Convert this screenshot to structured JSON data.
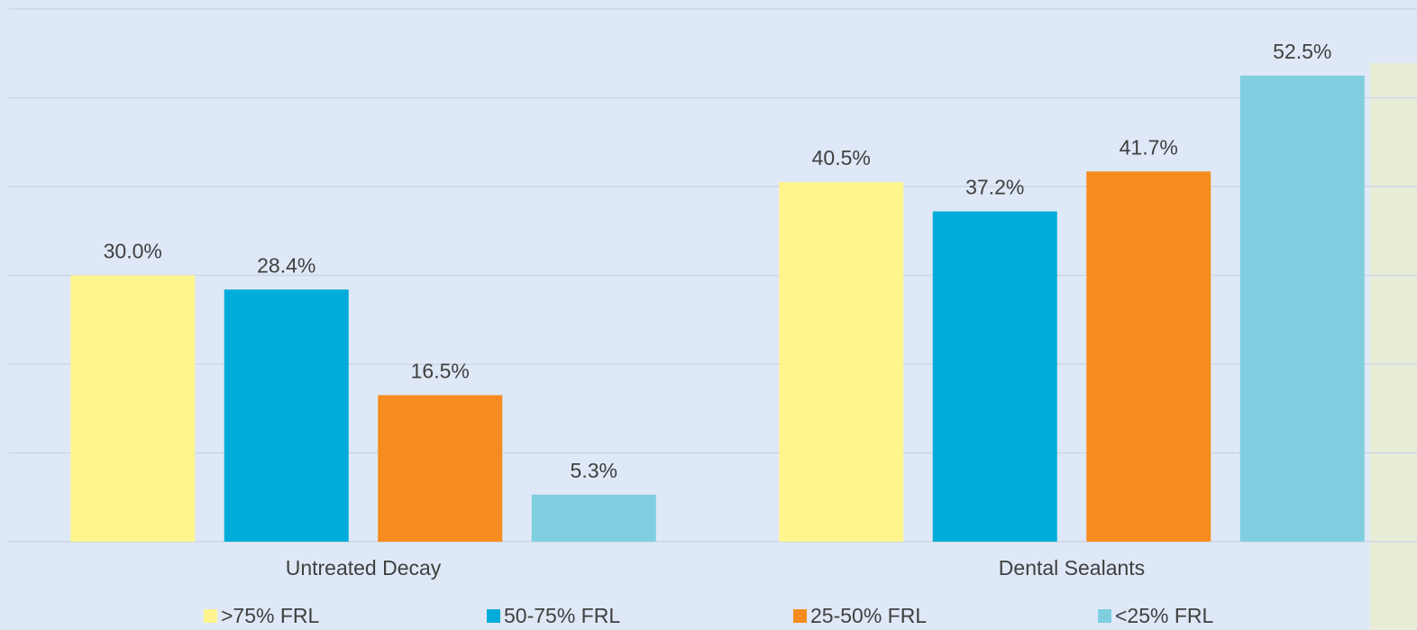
{
  "chart_data": {
    "type": "bar",
    "categories": [
      "Untreated Decay",
      "Dental Sealants"
    ],
    "series": [
      {
        "name": ">75% FRL",
        "color": "#fff58f",
        "values": [
          30.0,
          40.5
        ],
        "value_labels": [
          "30.0%",
          "40.5%"
        ]
      },
      {
        "name": "50-75% FRL",
        "color": "#00acd9",
        "values": [
          28.4,
          37.2
        ],
        "value_labels": [
          "28.4%",
          "37.2%"
        ]
      },
      {
        "name": "25-50% FRL",
        "color": "#f68c1f",
        "values": [
          16.5,
          41.7
        ],
        "value_labels": [
          "16.5%",
          "41.7%"
        ]
      },
      {
        "name": "<25% FRL",
        "color": "#7fcfe0",
        "values": [
          5.3,
          52.5
        ],
        "value_labels": [
          "5.3%",
          "52.5%"
        ]
      }
    ],
    "ylim": [
      0,
      60
    ],
    "yticks": [
      0,
      10,
      20,
      30,
      40,
      50,
      60
    ],
    "grid": true,
    "legend": "bottom"
  }
}
